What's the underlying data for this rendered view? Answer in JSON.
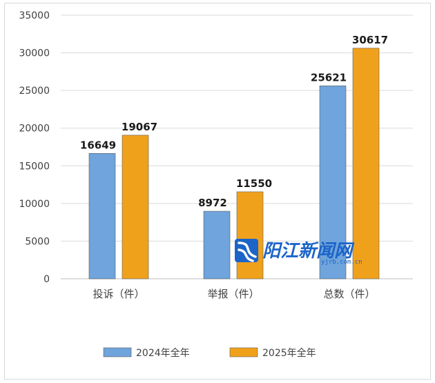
{
  "chart_data": {
    "type": "bar",
    "categories": [
      "投诉（件）",
      "举报（件）",
      "总数（件）"
    ],
    "series": [
      {
        "name": "2024年全年",
        "color": "#6fa4dc",
        "values": [
          16649,
          8972,
          25621
        ]
      },
      {
        "name": "2025年全年",
        "color": "#f0a11c",
        "values": [
          19067,
          11550,
          30617
        ]
      }
    ],
    "ylim": [
      0,
      35000
    ],
    "yticks": [
      0,
      5000,
      10000,
      15000,
      20000,
      25000,
      30000,
      35000
    ],
    "grid": true,
    "legend_position": "bottom-center",
    "data_labels": true
  },
  "watermark": {
    "brand": "阳江新闻网",
    "domain": "yjrb.com.cn",
    "icon": "river-logo-icon"
  }
}
